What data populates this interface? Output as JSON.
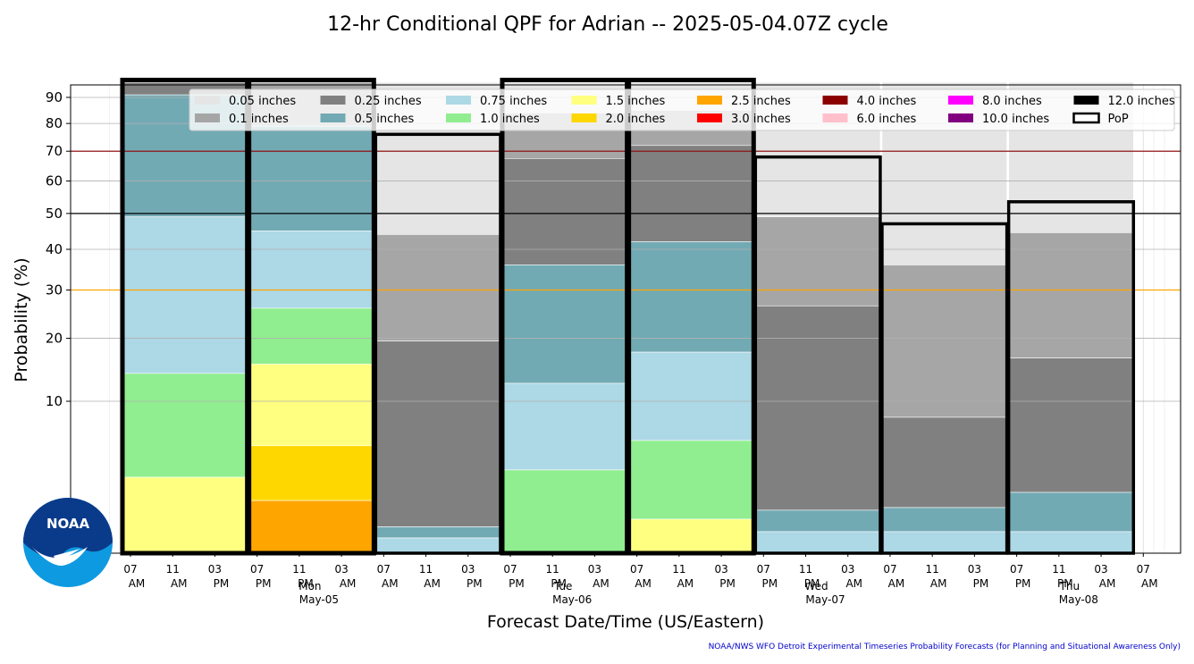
{
  "chart_data": {
    "type": "bar",
    "title": "12-hr Conditional QPF for Adrian -- 2025-05-04.07Z cycle",
    "xlabel": "Forecast Date/Time (US/Eastern)",
    "ylabel": "Probability (%)",
    "y_scale": "sqrt",
    "ylim": [
      0,
      95
    ],
    "yticks": [
      10,
      20,
      30,
      40,
      50,
      60,
      70,
      80,
      90
    ],
    "grid": true,
    "legend_position": "top",
    "reference_lines": [
      {
        "value": 30,
        "color": "#ffa500"
      },
      {
        "value": 50,
        "color": "#000000"
      },
      {
        "value": 70,
        "color": "#8b0000"
      }
    ],
    "time_ticks": [
      {
        "hour": "07",
        "ampm": "AM"
      },
      {
        "hour": "11",
        "ampm": "AM"
      },
      {
        "hour": "03",
        "ampm": "PM"
      },
      {
        "hour": "07",
        "ampm": "PM"
      },
      {
        "hour": "11",
        "ampm": "PM"
      },
      {
        "hour": "03",
        "ampm": "AM"
      },
      {
        "hour": "07",
        "ampm": "AM"
      },
      {
        "hour": "11",
        "ampm": "AM"
      },
      {
        "hour": "03",
        "ampm": "PM"
      },
      {
        "hour": "07",
        "ampm": "PM"
      },
      {
        "hour": "11",
        "ampm": "PM"
      },
      {
        "hour": "03",
        "ampm": "AM"
      },
      {
        "hour": "07",
        "ampm": "AM"
      },
      {
        "hour": "11",
        "ampm": "AM"
      },
      {
        "hour": "03",
        "ampm": "PM"
      },
      {
        "hour": "07",
        "ampm": "PM"
      },
      {
        "hour": "11",
        "ampm": "PM"
      },
      {
        "hour": "03",
        "ampm": "AM"
      },
      {
        "hour": "07",
        "ampm": "AM"
      },
      {
        "hour": "11",
        "ampm": "AM"
      },
      {
        "hour": "03",
        "ampm": "PM"
      },
      {
        "hour": "07",
        "ampm": "PM"
      },
      {
        "hour": "11",
        "ampm": "PM"
      },
      {
        "hour": "03",
        "ampm": "AM"
      },
      {
        "hour": "07",
        "ampm": "AM"
      }
    ],
    "day_labels": [
      {
        "day": "Mon",
        "date": "May-05",
        "tick_index": 4
      },
      {
        "day": "Tue",
        "date": "May-06",
        "tick_index": 10
      },
      {
        "day": "Wed",
        "date": "May-07",
        "tick_index": 16
      },
      {
        "day": "Thu",
        "date": "May-08",
        "tick_index": 22
      }
    ],
    "legend": [
      {
        "label": "0.05 inches",
        "color": "#e5e5e5"
      },
      {
        "label": "0.1 inches",
        "color": "#a6a6a6"
      },
      {
        "label": "0.25 inches",
        "color": "#808080"
      },
      {
        "label": "0.5 inches",
        "color": "#72aab4"
      },
      {
        "label": "0.75 inches",
        "color": "#add8e6"
      },
      {
        "label": "1.0 inches",
        "color": "#90ee90"
      },
      {
        "label": "1.5 inches",
        "color": "#ffff80"
      },
      {
        "label": "2.0 inches",
        "color": "#ffd700"
      },
      {
        "label": "2.5 inches",
        "color": "#ffa500"
      },
      {
        "label": "3.0 inches",
        "color": "#ff0000"
      },
      {
        "label": "4.0 inches",
        "color": "#8b0000"
      },
      {
        "label": "6.0 inches",
        "color": "#ffc0cb"
      },
      {
        "label": "8.0 inches",
        "color": "#ff00ff"
      },
      {
        "label": "10.0 inches",
        "color": "#800080"
      },
      {
        "label": "12.0 inches",
        "color": "#000000"
      },
      {
        "label": "PoP",
        "color": "#ffffff",
        "outline": "#000000"
      }
    ],
    "thresholds": [
      "0.05 inches",
      "0.1 inches",
      "0.25 inches",
      "0.5 inches",
      "0.75 inches",
      "1.0 inches",
      "1.5 inches",
      "2.0 inches",
      "2.5 inches"
    ],
    "periods": [
      {
        "start_tick": 0,
        "pop": 97,
        "probs": [
          97,
          96,
          96,
          91,
          49,
          14,
          2.5,
          0,
          0
        ]
      },
      {
        "start_tick": 3,
        "pop": 97,
        "probs": [
          97,
          96,
          79,
          79,
          45,
          26,
          15.5,
          5,
          1.2
        ]
      },
      {
        "start_tick": 6,
        "pop": 76,
        "probs": [
          96,
          44,
          19.5,
          0.3,
          0.1,
          0,
          0,
          0,
          0
        ]
      },
      {
        "start_tick": 9,
        "pop": 97,
        "probs": [
          96,
          84,
          67.5,
          36,
          12.5,
          3,
          0,
          0,
          0
        ]
      },
      {
        "start_tick": 12,
        "pop": 97,
        "probs": [
          96,
          85,
          72,
          42,
          17.5,
          5.5,
          0.5,
          0,
          0
        ]
      },
      {
        "start_tick": 15,
        "pop": 68,
        "probs": [
          96,
          49,
          26.5,
          0.8,
          0.2,
          0,
          0,
          0,
          0
        ]
      },
      {
        "start_tick": 18,
        "pop": 47,
        "probs": [
          96,
          36,
          8,
          0.9,
          0.2,
          0,
          0,
          0,
          0
        ]
      },
      {
        "start_tick": 21,
        "pop": 53.5,
        "probs": [
          96,
          44.5,
          16.5,
          1.6,
          0.2,
          0,
          0,
          0,
          0
        ]
      }
    ]
  },
  "credit": "NOAA/NWS WFO Detroit Experimental Timeseries Probability Forecasts (for Planning and Situational Awareness Only)",
  "logo": {
    "text": "NOAA"
  }
}
